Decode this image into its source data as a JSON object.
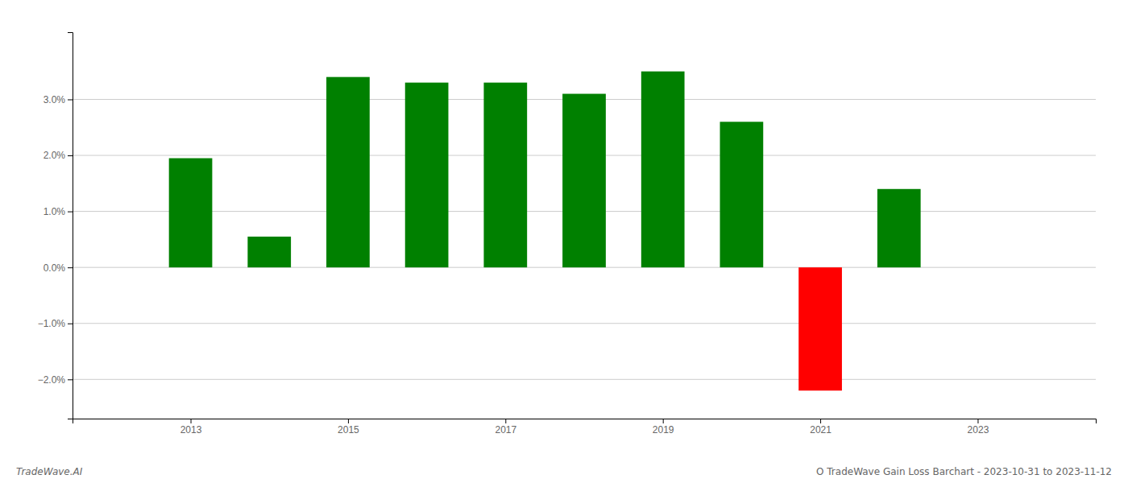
{
  "chart_data": {
    "type": "bar",
    "x": [
      2013,
      2014,
      2015,
      2016,
      2017,
      2018,
      2019,
      2020,
      2021,
      2022
    ],
    "values": [
      0.0195,
      0.0055,
      0.034,
      0.033,
      0.033,
      0.031,
      0.035,
      0.026,
      -0.022,
      0.014
    ],
    "colors": [
      "#008000",
      "#008000",
      "#008000",
      "#008000",
      "#008000",
      "#008000",
      "#008000",
      "#008000",
      "#ff0000",
      "#008000"
    ],
    "xlim": [
      2011.5,
      2024.5
    ],
    "xticks": [
      2013,
      2015,
      2017,
      2019,
      2021,
      2023
    ],
    "ylim": [
      -0.027,
      0.042
    ],
    "yticks": [
      {
        "value": -0.02,
        "label": "−2.0%"
      },
      {
        "value": -0.01,
        "label": "−1.0%"
      },
      {
        "value": 0.0,
        "label": "0.0%"
      },
      {
        "value": 0.01,
        "label": "1.0%"
      },
      {
        "value": 0.02,
        "label": "2.0%"
      },
      {
        "value": 0.03,
        "label": "3.0%"
      }
    ],
    "grid": true,
    "annotations": [
      "TradeWave.AI",
      "O TradeWave Gain Loss Barchart - 2023-10-31 to 2023-11-12"
    ]
  }
}
